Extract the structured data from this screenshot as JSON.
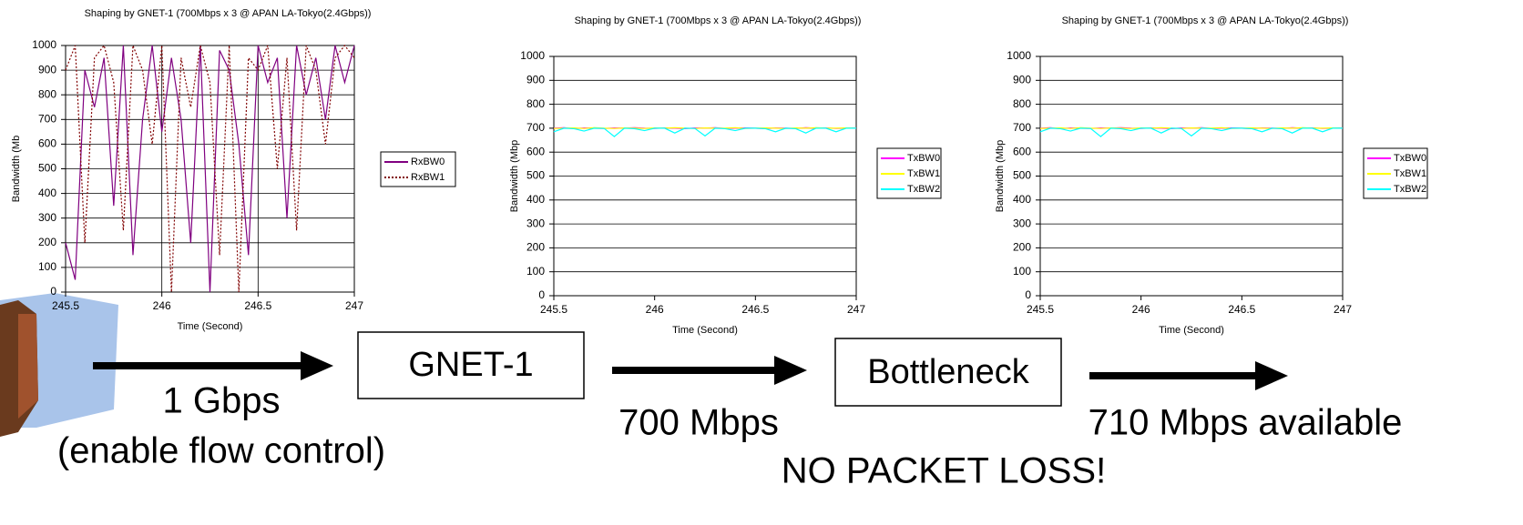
{
  "chart_data": [
    {
      "type": "line",
      "title": "Shaping by GNET-1 (700Mbps x 3 @ APAN LA-Tokyo(2.4Gbps))",
      "x_label": "Time (Second)",
      "y_label": "Bandwidth (Mb",
      "x": [
        245.5,
        245.55,
        245.6,
        245.65,
        245.7,
        245.75,
        245.8,
        245.85,
        245.9,
        245.95,
        246,
        246.05,
        246.1,
        246.15,
        246.2,
        246.25,
        246.3,
        246.35,
        246.4,
        246.45,
        246.5,
        246.55,
        246.6,
        246.65,
        246.7,
        246.75,
        246.8,
        246.85,
        246.9,
        246.95,
        247
      ],
      "series": [
        {
          "name": "RxBW0",
          "color": "#800080",
          "line_style": "solid",
          "values": [
            200,
            50,
            900,
            750,
            950,
            350,
            1000,
            150,
            700,
            1000,
            650,
            950,
            700,
            200,
            1000,
            0,
            980,
            900,
            600,
            150,
            1000,
            850,
            950,
            300,
            1000,
            800,
            950,
            700,
            1000,
            850,
            1000
          ]
        },
        {
          "name": "RxBW1",
          "color": "#800000",
          "line_style": "dotted",
          "values": [
            900,
            1000,
            200,
            950,
            1000,
            850,
            250,
            1000,
            900,
            600,
            1000,
            0,
            950,
            750,
            1000,
            850,
            150,
            1000,
            0,
            950,
            900,
            1000,
            500,
            950,
            250,
            1000,
            900,
            600,
            950,
            1000,
            950
          ]
        }
      ],
      "xlim": [
        245.5,
        247
      ],
      "xticks": [
        245.5,
        246,
        246.5,
        247
      ],
      "ylim": [
        0,
        1000
      ],
      "yticks": [
        0,
        100,
        200,
        300,
        400,
        500,
        600,
        700,
        800,
        900,
        1000
      ],
      "grid": true,
      "x_grid": true
    },
    {
      "type": "line",
      "title": "Shaping by GNET-1 (700Mbps x 3 @ APAN LA-Tokyo(2.4Gbps))",
      "x_label": "Time (Second)",
      "y_label": "Bandwidth (Mbp",
      "x": [
        245.5,
        245.55,
        245.6,
        245.65,
        245.7,
        245.75,
        245.8,
        245.85,
        245.9,
        245.95,
        246,
        246.05,
        246.1,
        246.15,
        246.2,
        246.25,
        246.3,
        246.35,
        246.4,
        246.45,
        246.5,
        246.55,
        246.6,
        246.65,
        246.7,
        246.75,
        246.8,
        246.85,
        246.9,
        246.95,
        247
      ],
      "series": [
        {
          "name": "TxBW0",
          "color": "#ff00ff",
          "line_style": "solid",
          "values": [
            700,
            702,
            698,
            701,
            700,
            699,
            701,
            700,
            702,
            700,
            699,
            701,
            700,
            698,
            701,
            700,
            702,
            699,
            700,
            701,
            700,
            698,
            701,
            700,
            699,
            702,
            700,
            701,
            699,
            700,
            701
          ]
        },
        {
          "name": "TxBW1",
          "color": "#ffff00",
          "line_style": "solid",
          "values": [
            699,
            700,
            701,
            699,
            702,
            700,
            699,
            701,
            700,
            699,
            701,
            700,
            702,
            700,
            699,
            701,
            700,
            700,
            702,
            699,
            700,
            701,
            700,
            699,
            701,
            700,
            702,
            700,
            700,
            701,
            700
          ]
        },
        {
          "name": "TxBW2",
          "color": "#00ffff",
          "line_style": "solid",
          "values": [
            685,
            700,
            698,
            688,
            700,
            699,
            665,
            700,
            698,
            690,
            700,
            700,
            680,
            700,
            699,
            668,
            700,
            698,
            690,
            700,
            700,
            698,
            685,
            700,
            698,
            680,
            700,
            700,
            685,
            700,
            700
          ]
        }
      ],
      "xlim": [
        245.5,
        247
      ],
      "xticks": [
        245.5,
        246,
        246.5,
        247
      ],
      "ylim": [
        0,
        1000
      ],
      "yticks": [
        0,
        100,
        200,
        300,
        400,
        500,
        600,
        700,
        800,
        900,
        1000
      ],
      "grid": true,
      "x_grid": false
    },
    {
      "type": "line",
      "title": "Shaping by GNET-1 (700Mbps x 3 @ APAN LA-Tokyo(2.4Gbps))",
      "x_label": "Time (Second)",
      "y_label": "Bandwidth (Mbp",
      "x": [
        245.5,
        245.55,
        245.6,
        245.65,
        245.7,
        245.75,
        245.8,
        245.85,
        245.9,
        245.95,
        246,
        246.05,
        246.1,
        246.15,
        246.2,
        246.25,
        246.3,
        246.35,
        246.4,
        246.45,
        246.5,
        246.55,
        246.6,
        246.65,
        246.7,
        246.75,
        246.8,
        246.85,
        246.9,
        246.95,
        247
      ],
      "series": [
        {
          "name": "TxBW0",
          "color": "#ff00ff",
          "line_style": "solid",
          "values": [
            700,
            702,
            698,
            701,
            700,
            699,
            701,
            700,
            702,
            700,
            699,
            701,
            700,
            698,
            701,
            700,
            702,
            699,
            700,
            701,
            700,
            698,
            701,
            700,
            699,
            702,
            700,
            701,
            699,
            700,
            701
          ]
        },
        {
          "name": "TxBW1",
          "color": "#ffff00",
          "line_style": "solid",
          "values": [
            699,
            700,
            701,
            699,
            702,
            700,
            699,
            701,
            700,
            699,
            701,
            700,
            702,
            700,
            699,
            701,
            700,
            700,
            702,
            699,
            700,
            701,
            700,
            699,
            701,
            700,
            702,
            700,
            700,
            701,
            700
          ]
        },
        {
          "name": "TxBW2",
          "color": "#00ffff",
          "line_style": "solid",
          "values": [
            685,
            700,
            698,
            688,
            700,
            699,
            665,
            700,
            698,
            690,
            700,
            700,
            680,
            700,
            699,
            668,
            700,
            698,
            690,
            700,
            700,
            698,
            685,
            700,
            698,
            680,
            700,
            700,
            685,
            700,
            700
          ]
        }
      ],
      "xlim": [
        245.5,
        247
      ],
      "xticks": [
        245.5,
        246,
        246.5,
        247
      ],
      "ylim": [
        0,
        1000
      ],
      "yticks": [
        0,
        100,
        200,
        300,
        400,
        500,
        600,
        700,
        800,
        900,
        1000
      ],
      "grid": true,
      "x_grid": false
    }
  ],
  "diagram": {
    "nodes": [
      {
        "label": "GNET-1"
      },
      {
        "label": "Bottleneck"
      }
    ],
    "notes": [
      "1 Gbps",
      "(enable flow control)",
      "700 Mbps",
      "710 Mbps available",
      "NO PACKET LOSS!"
    ]
  }
}
